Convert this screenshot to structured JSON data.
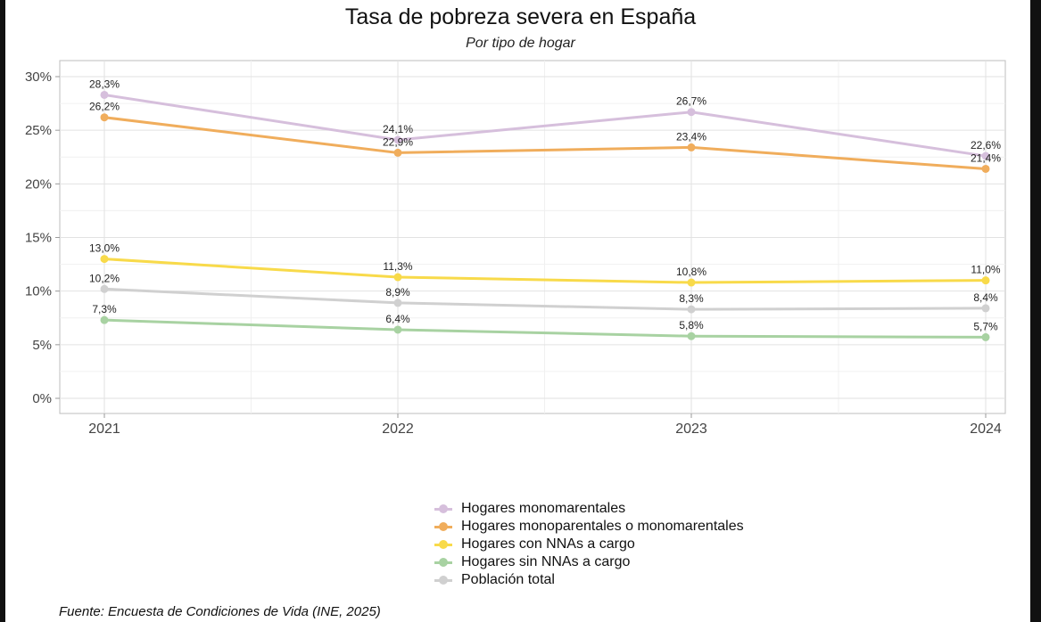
{
  "chart_data": {
    "type": "line",
    "title": "Tasa de pobreza severa en España",
    "subtitle": "Por tipo de hogar",
    "x": [
      "2021",
      "2022",
      "2023",
      "2024"
    ],
    "y_ticks": [
      "0%",
      "5%",
      "10%",
      "15%",
      "20%",
      "25%",
      "30%"
    ],
    "ylim": [
      0,
      30
    ],
    "grid": true,
    "legend_position": "bottom",
    "series": [
      {
        "name": "Hogares monomarentales",
        "color": "#d6bfdc",
        "values": [
          28.3,
          24.1,
          26.7,
          22.6
        ],
        "labels": [
          "28,3%",
          "24,1%",
          "26,7%",
          "22,6%"
        ]
      },
      {
        "name": "Hogares monoparentales o monomarentales",
        "color": "#f0ad5c",
        "values": [
          26.2,
          22.9,
          23.4,
          21.4
        ],
        "labels": [
          "26,2%",
          "22,9%",
          "23,4%",
          "21,4%"
        ]
      },
      {
        "name": "Hogares con NNAs a cargo",
        "color": "#f8da4a",
        "values": [
          13.0,
          11.3,
          10.8,
          11.0
        ],
        "labels": [
          "13,0%",
          "11,3%",
          "10,8%",
          "11,0%"
        ]
      },
      {
        "name": "Hogares sin NNAs a cargo",
        "color": "#a8d2a2",
        "values": [
          7.3,
          6.4,
          5.8,
          5.7
        ],
        "labels": [
          "7,3%",
          "6,4%",
          "5,8%",
          "5,7%"
        ]
      },
      {
        "name": "Población total",
        "color": "#d0d0d0",
        "values": [
          10.2,
          8.9,
          8.3,
          8.4
        ],
        "labels": [
          "10,2%",
          "8,9%",
          "8,3%",
          "8,4%"
        ]
      }
    ],
    "source": "Fuente: Encuesta de Condiciones de Vida (INE, 2025)"
  }
}
